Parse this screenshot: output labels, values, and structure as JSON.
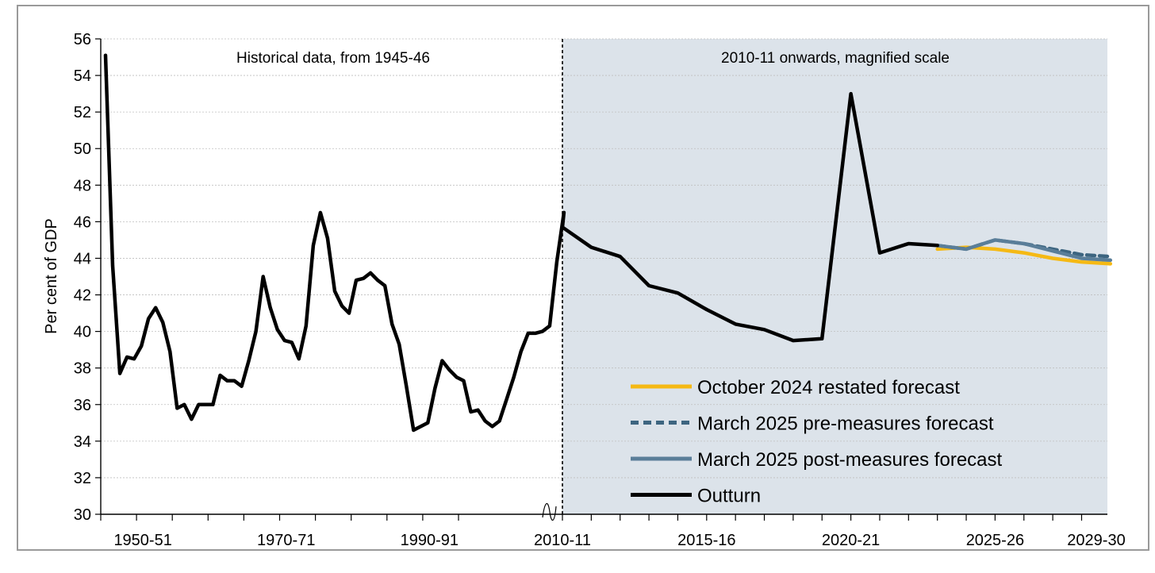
{
  "chart_data": {
    "type": "line",
    "ylabel": "Per cent of GDP",
    "ylim": [
      30,
      56
    ],
    "yticks": [
      30,
      32,
      34,
      36,
      38,
      40,
      42,
      44,
      46,
      48,
      50,
      52,
      54,
      56
    ],
    "grid": "horizontal",
    "annotations": {
      "left": "Historical data, from 1945-46",
      "right": "2010-11 onwards, magnified scale"
    },
    "historical_x_labels": [
      "1950-51",
      "1970-71",
      "1990-91"
    ],
    "recent_x_labels": [
      "2010-11",
      "2015-16",
      "2020-21",
      "2025-26",
      "2029-30"
    ],
    "colors": {
      "outturn": "#000000",
      "october_2024": "#F5B914",
      "march_2025_pre": "#3D6580",
      "march_2025_post": "#5A7E99",
      "shaded_panel": "#DCE3EA"
    },
    "historical_outturn": {
      "x": [
        "1945-46",
        "1946-47",
        "1947-48",
        "1948-49",
        "1949-50",
        "1950-51",
        "1951-52",
        "1952-53",
        "1953-54",
        "1954-55",
        "1955-56",
        "1956-57",
        "1957-58",
        "1958-59",
        "1959-60",
        "1960-61",
        "1961-62",
        "1962-63",
        "1963-64",
        "1964-65",
        "1965-66",
        "1966-67",
        "1967-68",
        "1968-69",
        "1969-70",
        "1970-71",
        "1971-72",
        "1972-73",
        "1973-74",
        "1974-75",
        "1975-76",
        "1976-77",
        "1977-78",
        "1978-79",
        "1979-80",
        "1980-81",
        "1981-82",
        "1982-83",
        "1983-84",
        "1984-85",
        "1985-86",
        "1986-87",
        "1987-88",
        "1988-89",
        "1989-90",
        "1990-91",
        "1991-92",
        "1992-93",
        "1993-94",
        "1994-95",
        "1995-96",
        "1996-97",
        "1997-98",
        "1998-99",
        "1999-00",
        "2000-01",
        "2001-02",
        "2002-03",
        "2003-04",
        "2004-05",
        "2005-06",
        "2006-07",
        "2007-08",
        "2008-09",
        "2009-10"
      ],
      "values": [
        55.1,
        43.6,
        37.7,
        38.6,
        38.5,
        39.2,
        40.7,
        41.3,
        40.5,
        38.9,
        35.8,
        36.0,
        35.2,
        36.0,
        36.0,
        36.0,
        37.6,
        37.3,
        37.3,
        37.0,
        38.4,
        40.0,
        43.0,
        41.3,
        40.1,
        39.5,
        39.4,
        38.5,
        40.3,
        44.7,
        46.5,
        45.1,
        42.2,
        41.4,
        41.0,
        42.8,
        42.9,
        43.2,
        42.8,
        42.5,
        40.4,
        39.3,
        37.0,
        34.6,
        34.8,
        35.0,
        36.9,
        38.4,
        37.9,
        37.5,
        37.3,
        35.6,
        35.7,
        35.1,
        34.8,
        35.1,
        36.3,
        37.5,
        38.9,
        39.9,
        39.9,
        40.0,
        40.3,
        43.8,
        46.5
      ]
    },
    "series": [
      {
        "name": "October 2024 restated forecast",
        "x": [
          "2023-24",
          "2024-25",
          "2025-26",
          "2026-27",
          "2027-28",
          "2028-29",
          "2029-30"
        ],
        "values": [
          44.5,
          44.6,
          44.5,
          44.3,
          44.0,
          43.8,
          43.7
        ]
      },
      {
        "name": "March 2025 pre-measures forecast",
        "x": [
          "2023-24",
          "2024-25",
          "2025-26",
          "2026-27",
          "2027-28",
          "2028-29",
          "2029-30"
        ],
        "values": [
          44.7,
          44.5,
          45.0,
          44.8,
          44.5,
          44.2,
          44.1
        ]
      },
      {
        "name": "March 2025 post-measures forecast",
        "x": [
          "2023-24",
          "2024-25",
          "2025-26",
          "2026-27",
          "2027-28",
          "2028-29",
          "2029-30"
        ],
        "values": [
          44.7,
          44.5,
          45.0,
          44.8,
          44.4,
          44.0,
          43.9
        ]
      },
      {
        "name": "Outturn",
        "x": [
          "2010-11",
          "2011-12",
          "2012-13",
          "2013-14",
          "2014-15",
          "2015-16",
          "2016-17",
          "2017-18",
          "2018-19",
          "2019-20",
          "2020-21",
          "2021-22",
          "2022-23",
          "2023-24"
        ],
        "values": [
          45.7,
          44.6,
          44.1,
          42.5,
          42.1,
          41.2,
          40.4,
          40.1,
          39.5,
          39.6,
          53.0,
          44.3,
          44.8,
          44.7
        ]
      }
    ]
  }
}
